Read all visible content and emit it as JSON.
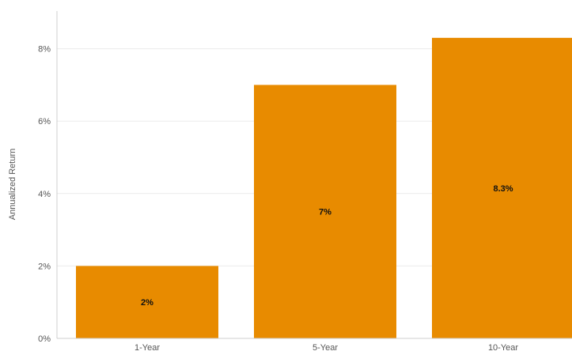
{
  "chart_data": {
    "type": "bar",
    "categories": [
      "1-Year",
      "5-Year",
      "10-Year"
    ],
    "values": [
      2,
      7,
      8.3
    ],
    "data_labels": [
      "2%",
      "7%",
      "8.3%"
    ],
    "title": "",
    "xlabel": "",
    "ylabel": "Annualized Return",
    "ylim": [
      0,
      9
    ],
    "yticks": [
      0,
      2,
      4,
      6,
      8
    ],
    "ytick_labels": [
      "0%",
      "2%",
      "4%",
      "6%",
      "8%"
    ],
    "grid": true,
    "legend": "none",
    "bar_color": "#E88B00"
  }
}
